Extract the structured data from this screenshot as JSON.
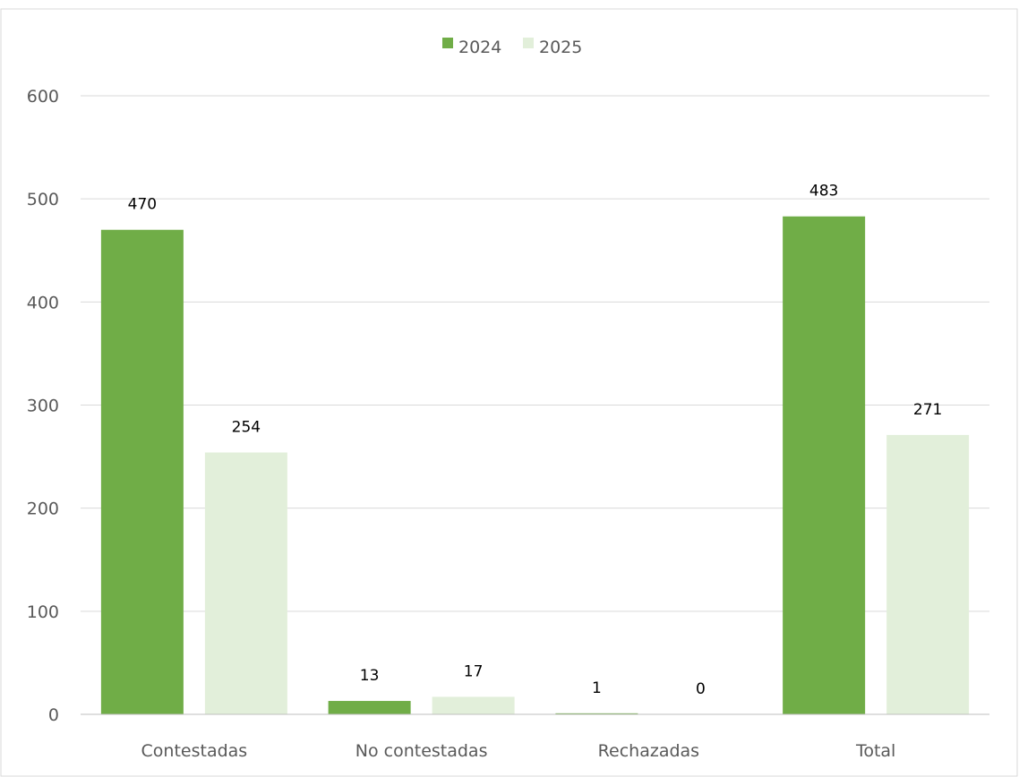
{
  "chart_data": {
    "type": "bar",
    "title": "",
    "xlabel": "",
    "ylabel": "",
    "categories": [
      "Contestadas",
      "No contestadas",
      "Rechazadas",
      "Total"
    ],
    "series": [
      {
        "name": "2024",
        "values": [
          470,
          13,
          1,
          483
        ],
        "color": "#70ad47"
      },
      {
        "name": "2025",
        "values": [
          254,
          17,
          0,
          271
        ],
        "color": "#e2efda"
      }
    ],
    "ylim": [
      0,
      600
    ],
    "yticks": [
      0,
      100,
      200,
      300,
      400,
      500,
      600
    ],
    "grid": true,
    "data_labels": true,
    "legend_position": "top-center",
    "colors": {
      "gridline": "#d9d9d9",
      "axis": "#bfbfbf",
      "text": "#595959",
      "label": "#000000",
      "frame": "#d9d9d9"
    }
  }
}
